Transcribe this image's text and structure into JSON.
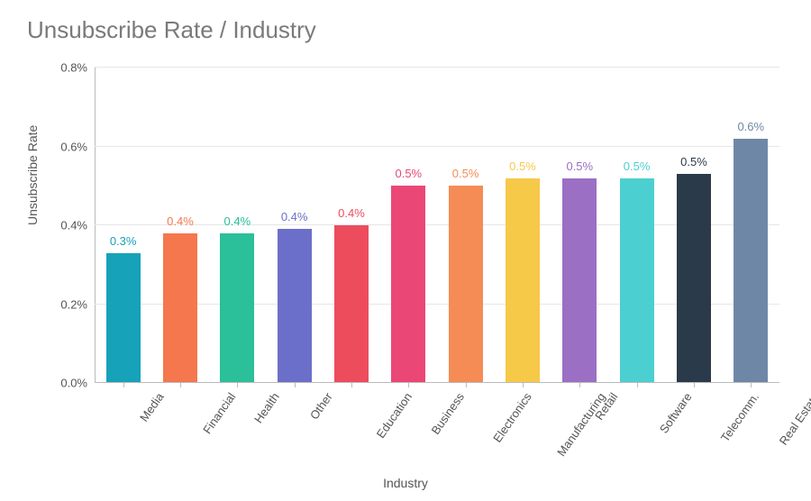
{
  "title": "Unsubscribe Rate / Industry",
  "chart": {
    "type": "bar",
    "ylabel": "Unsubscribe Rate",
    "xlabel": "Industry",
    "ymax": 0.8,
    "yticks": [
      {
        "value": 0.0,
        "label": "0.0%"
      },
      {
        "value": 0.2,
        "label": "0.2%"
      },
      {
        "value": 0.4,
        "label": "0.4%"
      },
      {
        "value": 0.6,
        "label": "0.6%"
      },
      {
        "value": 0.8,
        "label": "0.8%"
      }
    ],
    "grid_color": "#e6e6e6",
    "axis_color": "#bbbbbb",
    "background_color": "#ffffff",
    "title_color": "#7a7a7a",
    "title_fontsize": 26,
    "label_fontsize": 14,
    "tick_fontsize": 13,
    "bar_width_ratio": 0.6,
    "bars": [
      {
        "category": "Media",
        "value": 0.33,
        "display": "0.3%",
        "color": "#16a2b8",
        "label_color": "#16a2b8"
      },
      {
        "category": "Financial",
        "value": 0.38,
        "display": "0.4%",
        "color": "#f5774e",
        "label_color": "#f5774e"
      },
      {
        "category": "Health",
        "value": 0.38,
        "display": "0.4%",
        "color": "#2bbf9a",
        "label_color": "#2bbf9a"
      },
      {
        "category": "Other",
        "value": 0.39,
        "display": "0.4%",
        "color": "#6c6fc9",
        "label_color": "#6c6fc9"
      },
      {
        "category": "Education",
        "value": 0.4,
        "display": "0.4%",
        "color": "#ed4c5c",
        "label_color": "#ed4c5c"
      },
      {
        "category": "Business",
        "value": 0.5,
        "display": "0.5%",
        "color": "#ea4777",
        "label_color": "#ea4777"
      },
      {
        "category": "Electronics",
        "value": 0.5,
        "display": "0.5%",
        "color": "#f58c55",
        "label_color": "#f58c55"
      },
      {
        "category": "Manufacturing",
        "value": 0.52,
        "display": "0.5%",
        "color": "#f7c948",
        "label_color": "#f7c948"
      },
      {
        "category": "Retail",
        "value": 0.52,
        "display": "0.5%",
        "color": "#9a6fc4",
        "label_color": "#9a6fc4"
      },
      {
        "category": "Software",
        "value": 0.52,
        "display": "0.5%",
        "color": "#4bcfd0",
        "label_color": "#4bcfd0"
      },
      {
        "category": "Telecomm.",
        "value": 0.53,
        "display": "0.5%",
        "color": "#2b3a4a",
        "label_color": "#2b3a4a"
      },
      {
        "category": "Real Estate",
        "value": 0.62,
        "display": "0.6%",
        "color": "#6f87a6",
        "label_color": "#6f87a6"
      }
    ]
  }
}
